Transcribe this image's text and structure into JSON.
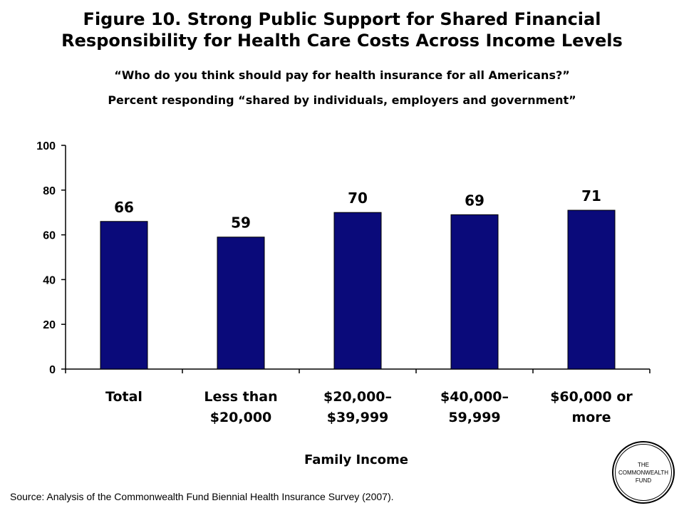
{
  "title_line1": "Figure 10. Strong Public Support for Shared Financial",
  "title_line2": "Responsibility for Health Care Costs Across Income Levels",
  "subtitle1": "“Who do you think should pay for health insurance for all Americans?”",
  "subtitle2": "Percent responding “shared by individuals, employers and government”",
  "source": "Source: Analysis of the Commonwealth Fund Biennial Health Insurance Survey (2007).",
  "logo": {
    "line1": "THE",
    "line2": "COMMONWEALTH",
    "line3": "FUND"
  },
  "colors": {
    "bar": "#0A0A7A",
    "axis": "#000000"
  },
  "chart_data": {
    "type": "bar",
    "categories": [
      [
        "Total"
      ],
      [
        "Less than",
        "$20,000"
      ],
      [
        "$20,000–",
        "$39,999"
      ],
      [
        "$40,000–",
        "59,999"
      ],
      [
        "$60,000 or",
        "more"
      ]
    ],
    "values": [
      66,
      59,
      70,
      69,
      71
    ],
    "data_labels": [
      "66",
      "59",
      "70",
      "69",
      "71"
    ],
    "xlabel": "Family Income",
    "ylabel": "",
    "ylim": [
      0,
      100
    ],
    "yticks": [
      0,
      20,
      40,
      60,
      80,
      100
    ],
    "grid": false,
    "legend": "none"
  }
}
